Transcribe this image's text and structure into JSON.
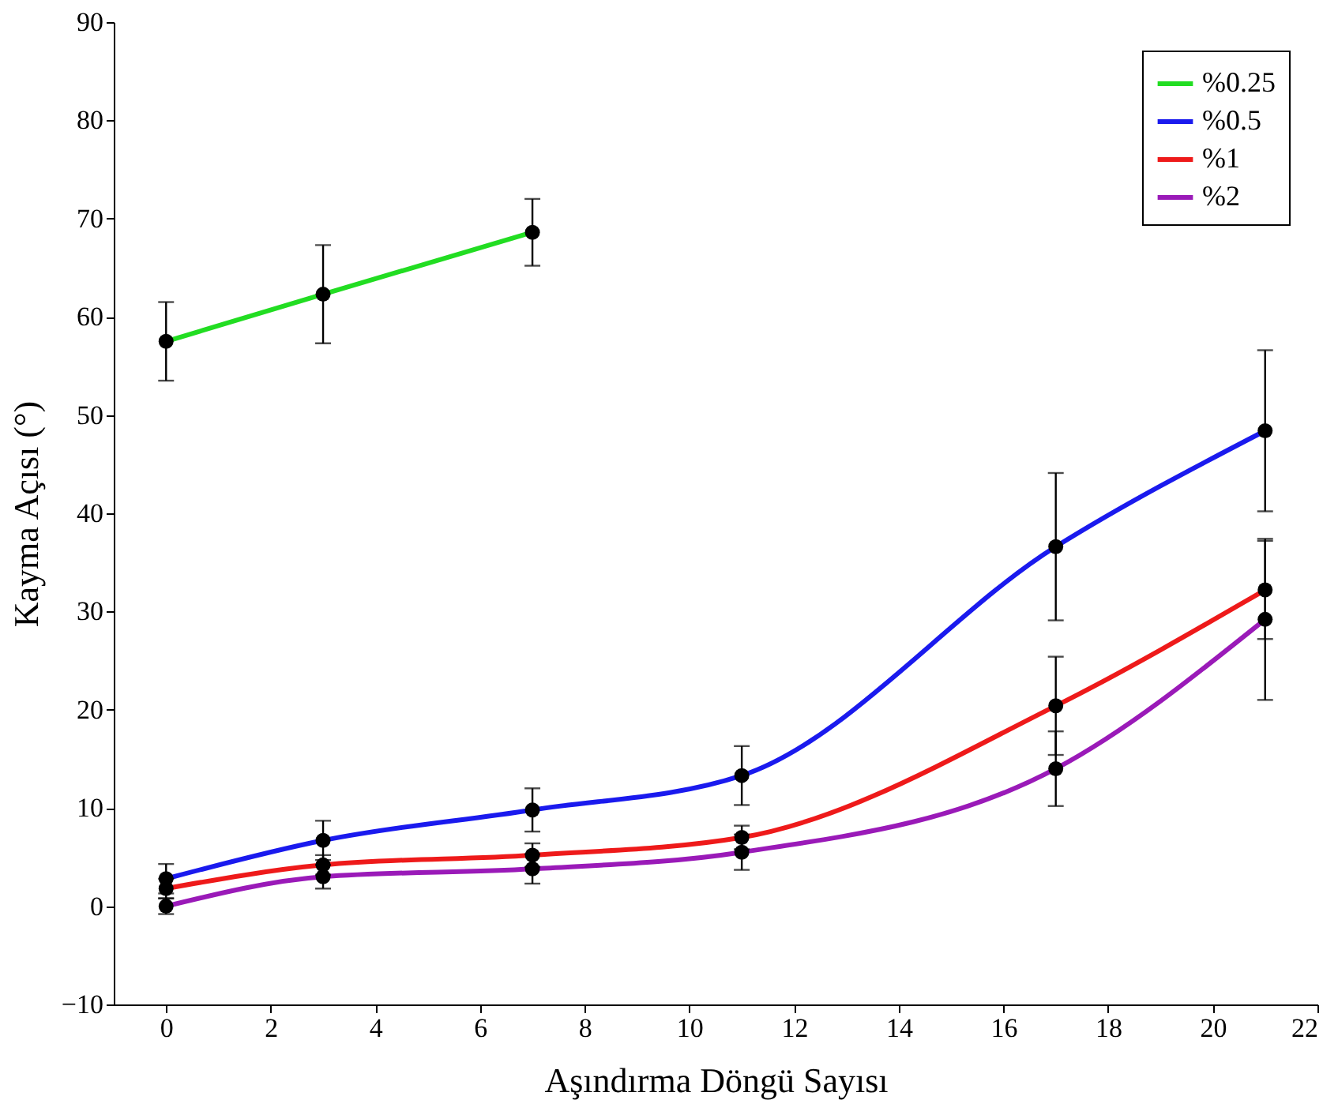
{
  "chart_data": {
    "type": "line",
    "xlabel": "Aşındırma Döngü Sayısı",
    "ylabel": "Kayma Açısı (°)",
    "x": [
      0,
      3,
      7,
      11,
      17,
      21
    ],
    "series": [
      {
        "name": "%0.25",
        "color": "#22dd22",
        "values": [
          57.5,
          62.3,
          68.6,
          null,
          null,
          null
        ],
        "errors": [
          4,
          5,
          3.4,
          null,
          null,
          null
        ]
      },
      {
        "name": "%0.5",
        "color": "#1a1aee",
        "values": [
          2.8,
          6.7,
          9.8,
          13.3,
          36.6,
          48.4
        ],
        "errors": [
          1.5,
          2,
          2.2,
          3,
          7.5,
          8.2
        ]
      },
      {
        "name": "%1",
        "color": "#ee1a1a",
        "values": [
          1.8,
          4.2,
          5.2,
          7,
          20.4,
          32.2
        ],
        "errors": [
          1,
          1,
          1.2,
          1.2,
          5,
          5
        ]
      },
      {
        "name": "%2",
        "color": "#9a1ab8",
        "values": [
          0,
          3,
          3.8,
          5.5,
          14,
          29.2
        ],
        "errors": [
          0.8,
          1.2,
          1.5,
          1.8,
          3.8,
          8.2
        ]
      }
    ],
    "xlim": [
      -1,
      22
    ],
    "xticks": [
      0,
      2,
      4,
      6,
      8,
      10,
      12,
      14,
      16,
      18,
      20,
      22
    ],
    "ylim": [
      -10,
      90
    ],
    "yticks": [
      -10,
      0,
      10,
      20,
      30,
      40,
      50,
      60,
      70,
      80,
      90
    ],
    "marker": "circle",
    "line_style": "solid",
    "grid": false,
    "legend": "top right"
  }
}
